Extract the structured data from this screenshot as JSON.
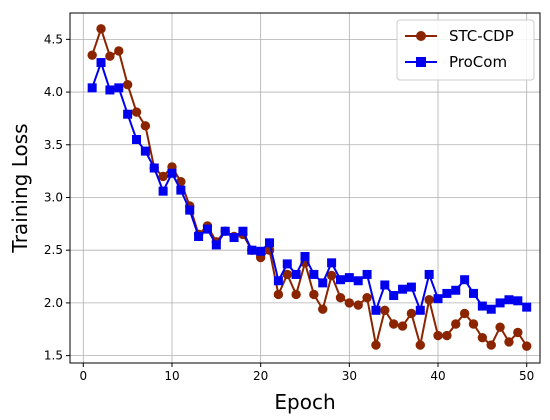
{
  "chart_data": {
    "type": "line",
    "xlabel": "Epoch",
    "ylabel": "Training Loss",
    "xlim": [
      -1.5,
      51.5
    ],
    "ylim": [
      1.43,
      4.75
    ],
    "xticks": [
      0,
      10,
      20,
      30,
      40,
      50
    ],
    "yticks": [
      1.5,
      2.0,
      2.5,
      3.0,
      3.5,
      4.0,
      4.5
    ],
    "ytick_labels": [
      "1.5",
      "2.0",
      "2.5",
      "3.0",
      "3.5",
      "4.0",
      "4.5"
    ],
    "grid": true,
    "legend_position": "top-right",
    "x": [
      1,
      2,
      3,
      4,
      5,
      6,
      7,
      8,
      9,
      10,
      11,
      12,
      13,
      14,
      15,
      16,
      17,
      18,
      19,
      20,
      21,
      22,
      23,
      24,
      25,
      26,
      27,
      28,
      29,
      30,
      31,
      32,
      33,
      34,
      35,
      36,
      37,
      38,
      39,
      40,
      41,
      42,
      43,
      44,
      45,
      46,
      47,
      48,
      49,
      50
    ],
    "series": [
      {
        "name": "STC-CDP",
        "color": "#8b2500",
        "marker": "circle",
        "values": [
          4.35,
          4.6,
          4.34,
          4.39,
          4.07,
          3.81,
          3.68,
          3.28,
          3.2,
          3.29,
          3.15,
          2.92,
          2.65,
          2.73,
          2.58,
          2.68,
          2.63,
          2.65,
          2.5,
          2.43,
          2.5,
          2.08,
          2.27,
          2.08,
          2.38,
          2.08,
          1.94,
          2.26,
          2.05,
          2.0,
          1.98,
          2.05,
          1.6,
          1.93,
          1.8,
          1.78,
          1.9,
          1.6,
          2.03,
          1.69,
          1.69,
          1.8,
          1.9,
          1.8,
          1.67,
          1.6,
          1.77,
          1.63,
          1.72,
          1.59
        ]
      },
      {
        "name": "ProCom",
        "color": "#0000ee",
        "marker": "square",
        "values": [
          4.04,
          4.28,
          4.02,
          4.04,
          3.79,
          3.55,
          3.44,
          3.28,
          3.06,
          3.23,
          3.07,
          2.88,
          2.63,
          2.7,
          2.55,
          2.68,
          2.62,
          2.68,
          2.5,
          2.49,
          2.57,
          2.21,
          2.37,
          2.27,
          2.44,
          2.27,
          2.19,
          2.38,
          2.22,
          2.24,
          2.21,
          2.27,
          1.93,
          2.17,
          2.07,
          2.13,
          2.15,
          1.93,
          2.27,
          2.04,
          2.09,
          2.12,
          2.22,
          2.09,
          1.97,
          1.94,
          2.0,
          2.03,
          2.02,
          1.96
        ]
      }
    ]
  }
}
